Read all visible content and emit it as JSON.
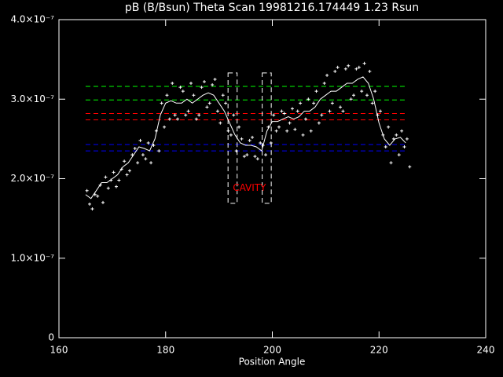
{
  "chart_data": {
    "type": "scatter",
    "title": "pB (B/Bsun) Theta Scan 19981216.174449 1.23 Rsun",
    "xlabel": "Position Angle",
    "xlim": [
      160,
      240
    ],
    "xticks": [
      160,
      180,
      200,
      220,
      240
    ],
    "ylim": [
      0,
      4e-07
    ],
    "yticks": [
      0,
      {
        "value": 1e-07,
        "label": "1.0×10⁻⁷"
      },
      {
        "value": 2e-07,
        "label": "2.0×10⁻⁷"
      },
      {
        "value": 3e-07,
        "label": "3.0×10⁻⁷"
      },
      {
        "value": 4e-07,
        "label": "4.0×10⁻⁷"
      }
    ],
    "points": {
      "color": "#ffffff",
      "x": [
        165.25,
        165.75,
        166.25,
        166.75,
        167.25,
        167.75,
        168.25,
        168.75,
        169.25,
        169.75,
        170.25,
        170.75,
        171.25,
        171.75,
        172.25,
        172.75,
        173.25,
        173.75,
        174.25,
        174.75,
        175.25,
        175.75,
        176.25,
        176.75,
        177.25,
        177.75,
        178.25,
        178.75,
        179.25,
        179.75,
        180.25,
        180.75,
        181.25,
        181.75,
        182.25,
        182.75,
        183.25,
        183.75,
        184.25,
        184.75,
        185.25,
        185.75,
        186.25,
        186.75,
        187.25,
        187.75,
        188.25,
        188.75,
        189.25,
        189.75,
        190.25,
        190.75,
        191.25,
        191.75,
        192.25,
        192.75,
        193.25,
        193.75,
        194.25,
        194.75,
        195.25,
        195.75,
        196.25,
        196.75,
        197.25,
        197.75,
        198.25,
        198.75,
        199.25,
        199.75,
        200.25,
        200.75,
        201.25,
        201.75,
        202.25,
        202.75,
        203.25,
        203.75,
        204.25,
        204.75,
        205.25,
        205.75,
        206.25,
        206.75,
        207.25,
        207.75,
        208.25,
        208.75,
        209.25,
        209.75,
        210.25,
        210.75,
        211.25,
        211.75,
        212.25,
        212.75,
        213.25,
        213.75,
        214.25,
        214.75,
        215.25,
        215.75,
        216.25,
        216.75,
        217.25,
        217.75,
        218.25,
        218.75,
        219.25,
        219.75,
        220.25,
        220.75,
        221.25,
        221.75,
        222.25,
        222.75,
        223.25,
        223.75,
        224.25,
        224.75,
        225.25,
        225.75
      ],
      "values": [
        1.85e-07,
        1.68e-07,
        1.62e-07,
        1.8e-07,
        1.78e-07,
        1.92e-07,
        1.7e-07,
        2.02e-07,
        1.88e-07,
        1.98e-07,
        2.08e-07,
        1.9e-07,
        1.98e-07,
        2.12e-07,
        2.22e-07,
        2.05e-07,
        2.1e-07,
        2.3e-07,
        2.38e-07,
        2.2e-07,
        2.48e-07,
        2.3e-07,
        2.25e-07,
        2.45e-07,
        2.2e-07,
        2.42e-07,
        2.6e-07,
        2.35e-07,
        2.95e-07,
        2.65e-07,
        3.05e-07,
        2.75e-07,
        3.2e-07,
        2.8e-07,
        2.75e-07,
        3.15e-07,
        3.1e-07,
        2.8e-07,
        2.85e-07,
        3.2e-07,
        3.05e-07,
        2.75e-07,
        2.8e-07,
        3.15e-07,
        3.22e-07,
        2.9e-07,
        2.95e-07,
        3.18e-07,
        3.25e-07,
        2.85e-07,
        2.7e-07,
        3.05e-07,
        2.95e-07,
        2.6e-07,
        2.55e-07,
        2.8e-07,
        2.35e-07,
        2.65e-07,
        2.5e-07,
        2.28e-07,
        2.3e-07,
        2.48e-07,
        2.52e-07,
        2.28e-07,
        2.25e-07,
        2.45e-07,
        2.42e-07,
        2.3e-07,
        2.65e-07,
        2.45e-07,
        2.8e-07,
        2.6e-07,
        2.65e-07,
        2.85e-07,
        2.82e-07,
        2.6e-07,
        2.7e-07,
        2.88e-07,
        2.62e-07,
        2.85e-07,
        2.95e-07,
        2.55e-07,
        2.75e-07,
        3e-07,
        2.6e-07,
        2.95e-07,
        3.1e-07,
        2.7e-07,
        2.8e-07,
        3.2e-07,
        3.3e-07,
        2.85e-07,
        2.95e-07,
        3.35e-07,
        3.4e-07,
        2.9e-07,
        2.85e-07,
        3.38e-07,
        3.42e-07,
        3e-07,
        3.05e-07,
        3.38e-07,
        3.4e-07,
        3.1e-07,
        3.45e-07,
        3.05e-07,
        3.35e-07,
        2.95e-07,
        3.1e-07,
        2.8e-07,
        2.85e-07,
        2.55e-07,
        2.4e-07,
        2.65e-07,
        2.2e-07,
        2.5e-07,
        2.55e-07,
        2.3e-07,
        2.6e-07,
        2.4e-07,
        2.5e-07,
        2.15e-07
      ]
    },
    "smooth": {
      "color": "#ffffff",
      "x": [
        165,
        166,
        167,
        168,
        169,
        170,
        171,
        172,
        173,
        174,
        175,
        176,
        177,
        178,
        179,
        180,
        181,
        182,
        183,
        184,
        185,
        186,
        187,
        188,
        189,
        190,
        191,
        192,
        193,
        194,
        195,
        196,
        197,
        198,
        199,
        200,
        201,
        202,
        203,
        204,
        205,
        206,
        207,
        208,
        209,
        210,
        211,
        212,
        213,
        214,
        215,
        216,
        217,
        218,
        219,
        220,
        221,
        222,
        223,
        224,
        225
      ],
      "values": [
        1.8e-07,
        1.75e-07,
        1.85e-07,
        1.95e-07,
        1.95e-07,
        2e-07,
        2.05e-07,
        2.15e-07,
        2.2e-07,
        2.3e-07,
        2.4e-07,
        2.38e-07,
        2.35e-07,
        2.5e-07,
        2.8e-07,
        2.95e-07,
        2.98e-07,
        2.95e-07,
        2.95e-07,
        3e-07,
        2.95e-07,
        3e-07,
        3.05e-07,
        3.08e-07,
        3.05e-07,
        2.95e-07,
        2.85e-07,
        2.7e-07,
        2.55e-07,
        2.45e-07,
        2.42e-07,
        2.42e-07,
        2.4e-07,
        2.35e-07,
        2.6e-07,
        2.72e-07,
        2.72e-07,
        2.75e-07,
        2.78e-07,
        2.75e-07,
        2.78e-07,
        2.85e-07,
        2.85e-07,
        2.9e-07,
        3e-07,
        3.05e-07,
        3.1e-07,
        3.1e-07,
        3.15e-07,
        3.2e-07,
        3.2e-07,
        3.25e-07,
        3.28e-07,
        3.2e-07,
        3e-07,
        2.7e-07,
        2.5e-07,
        2.42e-07,
        2.5e-07,
        2.52e-07,
        2.45e-07
      ]
    },
    "reference_lines": {
      "xlim": [
        165,
        225
      ],
      "lines": [
        {
          "value": 3.16e-07,
          "color": "#00ff00"
        },
        {
          "value": 2.99e-07,
          "color": "#00ff00"
        },
        {
          "value": 2.82e-07,
          "color": "#ff0000"
        },
        {
          "value": 2.74e-07,
          "color": "#ff0000"
        },
        {
          "value": 2.43e-07,
          "color": "#0000ff"
        },
        {
          "value": 2.35e-07,
          "color": "#0000ff"
        }
      ]
    },
    "cavity": {
      "label": "CAVITY",
      "color": "#ff0000",
      "label_x": 195.7,
      "label_y": 1.88e-07,
      "ylim": [
        1.69e-07,
        3.33e-07
      ],
      "bounds": [
        [
          191.7,
          193.4
        ],
        [
          198.1,
          199.8
        ]
      ]
    }
  }
}
